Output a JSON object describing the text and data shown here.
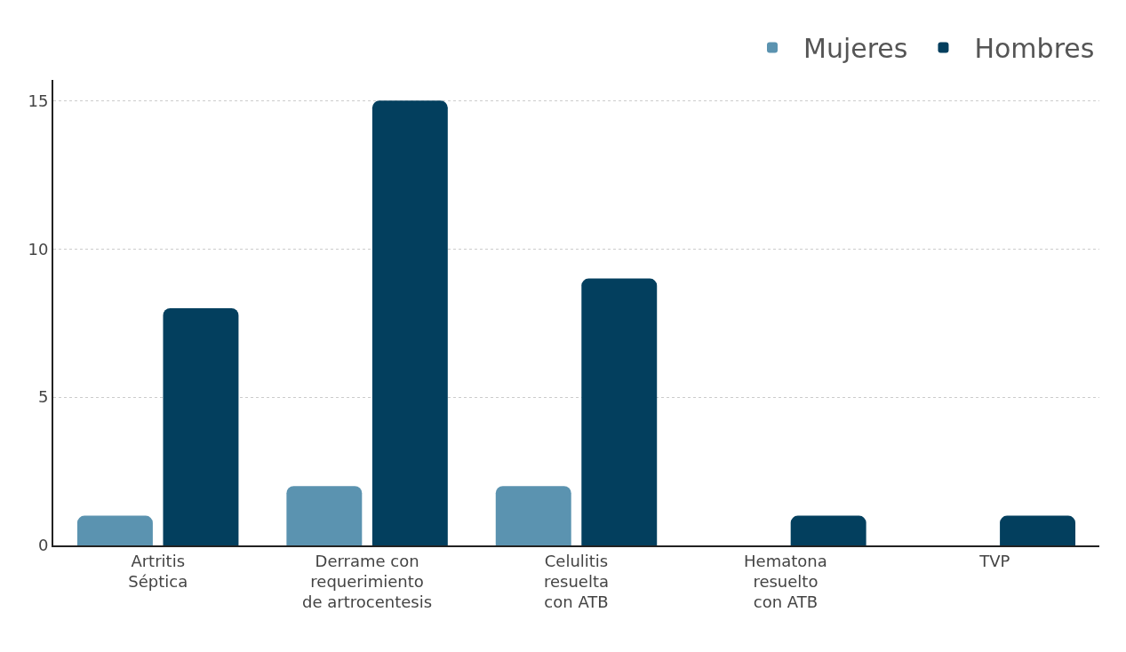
{
  "chart_data": {
    "type": "bar",
    "categories": [
      "Artritis\nSéptica",
      "Derrame con\nrequerimiento\nde artrocentesis",
      "Celulitis\nresuelta\ncon ATB",
      "Hematona\nresuelto\ncon ATB",
      "TVP"
    ],
    "series": [
      {
        "name": "Mujeres",
        "color": "#5b93b0",
        "values": [
          1,
          2,
          2,
          null,
          null
        ]
      },
      {
        "name": "Hombres",
        "color": "#033f5e",
        "values": [
          8,
          15,
          9,
          1,
          1
        ]
      }
    ],
    "ylim": [
      0,
      15.7
    ],
    "yticks": [
      0,
      5,
      10,
      15
    ],
    "grid": "y",
    "legend": "top right"
  }
}
